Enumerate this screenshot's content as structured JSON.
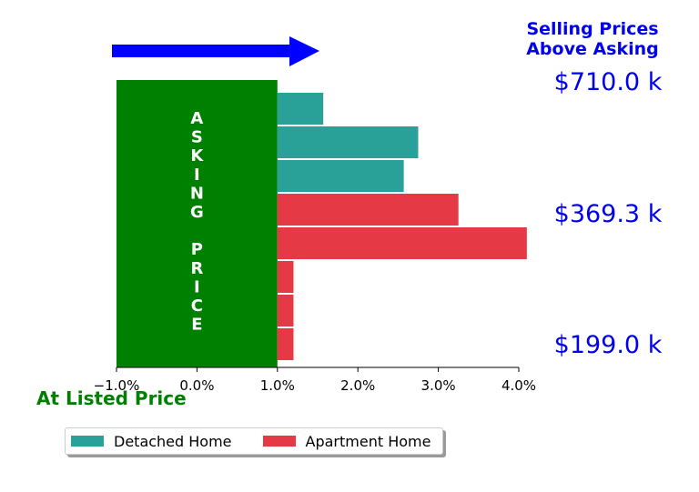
{
  "chart_data": {
    "type": "bar",
    "orientation": "horizontal",
    "xlim": [
      -1.0,
      4.0
    ],
    "x_ticks": [
      -1.0,
      0.0,
      1.0,
      2.0,
      3.0,
      4.0
    ],
    "x_tick_labels": [
      "−1.0%",
      "0.0%",
      "1.0%",
      "2.0%",
      "3.0%",
      "4.0%"
    ],
    "asking_band": {
      "from": -1.0,
      "to": 1.0,
      "color": "#008000"
    },
    "asking_text": "ASKING PRICE",
    "bars": [
      {
        "series": "Detached Home",
        "start": 1.0,
        "value": 1.57
      },
      {
        "series": "Detached Home",
        "start": 1.0,
        "value": 2.75
      },
      {
        "series": "Detached Home",
        "start": 1.0,
        "value": 2.57
      },
      {
        "series": "Apartment Home",
        "start": 1.0,
        "value": 3.25
      },
      {
        "series": "Apartment Home",
        "start": 1.0,
        "value": 4.1
      },
      {
        "series": "Apartment Home",
        "start": 1.0,
        "value": 1.2
      },
      {
        "series": "Apartment Home",
        "start": 1.0,
        "value": 1.2
      },
      {
        "series": "Apartment Home",
        "start": 1.0,
        "value": 1.2
      }
    ],
    "series": [
      {
        "name": "Detached Home",
        "color": "#2aa198"
      },
      {
        "name": "Apartment Home",
        "color": "#e63946"
      }
    ],
    "price_labels": [
      "$710.0 k",
      "$369.3 k",
      "$199.0 k"
    ],
    "top_annotation": [
      "Selling Prices",
      "Above Asking"
    ],
    "bottom_annotation": "At Listed Price",
    "arrow_color": "#0000ff",
    "grid": false,
    "legend_position": "bottom-left"
  }
}
